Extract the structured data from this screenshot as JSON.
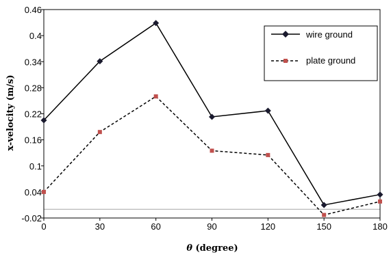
{
  "chart_data": {
    "type": "line",
    "title": "",
    "xlabel_symbol": "θ",
    "xlabel_text": " (degree)",
    "ylabel": "x-velocity (m/s)",
    "x": [
      0,
      30,
      60,
      90,
      120,
      150,
      180
    ],
    "x_ticks": [
      "0",
      "30",
      "60",
      "90",
      "120",
      "150",
      "180"
    ],
    "xlim": [
      0,
      180
    ],
    "ylim": [
      -0.02,
      0.46
    ],
    "y_ticks": [
      "-0.02",
      "0.04",
      "0.1",
      "0.16",
      "0.22",
      "0.28",
      "0.34",
      "0.4",
      "0.46"
    ],
    "y_tick_values": [
      -0.02,
      0.04,
      0.1,
      0.16,
      0.22,
      0.28,
      0.34,
      0.4,
      0.46
    ],
    "reference_line_y": 0.0,
    "grid": false,
    "legend_position": "top-right",
    "series": [
      {
        "name": "wire ground",
        "values": [
          0.205,
          0.341,
          0.429,
          0.213,
          0.227,
          0.01,
          0.034
        ],
        "line_style": "solid",
        "marker": "diamond",
        "color": "#000000",
        "marker_color": "#1a1a2e"
      },
      {
        "name": "plate ground",
        "values": [
          0.04,
          0.178,
          0.26,
          0.135,
          0.125,
          -0.013,
          0.018
        ],
        "line_style": "dashed",
        "marker": "square",
        "color": "#000000",
        "marker_color": "#c0504d"
      }
    ]
  }
}
